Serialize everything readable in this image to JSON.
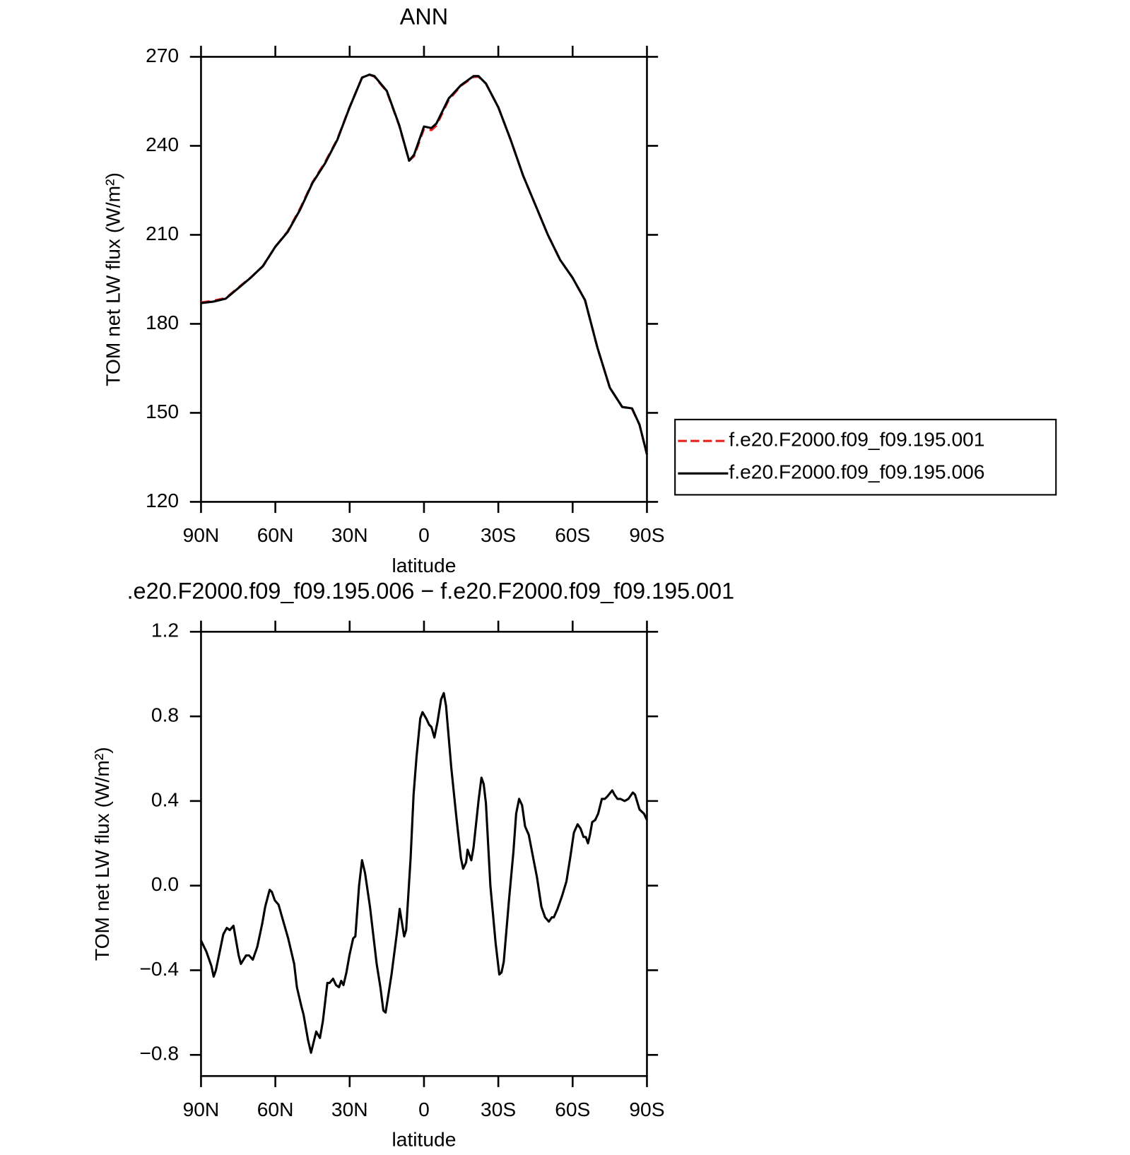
{
  "chart_data": [
    {
      "type": "line",
      "title": "ANN",
      "xlabel": "latitude",
      "ylabel": "TOM net LW flux (W/m²)",
      "xlim": [
        90,
        -90
      ],
      "xticks": [
        {
          "value": 90,
          "label": "90N"
        },
        {
          "value": 60,
          "label": "60N"
        },
        {
          "value": 30,
          "label": "30N"
        },
        0,
        {
          "value": -30,
          "label": "30S"
        },
        {
          "value": -60,
          "label": "60S"
        },
        {
          "value": -90,
          "label": "90S"
        }
      ],
      "ylim": [
        120,
        270
      ],
      "yticks": [
        120,
        150,
        180,
        210,
        240,
        270
      ],
      "legend": "right",
      "x": [
        90,
        85,
        80,
        75,
        70,
        65,
        60,
        55,
        50,
        45,
        40,
        35,
        30,
        25,
        22,
        20,
        15,
        10,
        6,
        4,
        0,
        -3,
        -5,
        -10,
        -15,
        -20,
        -22,
        -25,
        -30,
        -35,
        -40,
        -45,
        -50,
        -55,
        -60,
        -65,
        -70,
        -75,
        -80,
        -84,
        -87,
        -90
      ],
      "series": [
        {
          "name": "f.e20.F2000.f09_f09.195.001",
          "color": "#e8211f",
          "dash": true,
          "values": [
            187.2,
            187.8,
            188.7,
            192.2,
            195.6,
            199.4,
            206,
            211.2,
            218.9,
            227.7,
            234.4,
            242.2,
            253.1,
            263,
            264,
            263.3,
            258.3,
            246.8,
            235,
            236.5,
            245.7,
            245.3,
            246.8,
            255.5,
            260.3,
            263.2,
            263.3,
            261,
            253,
            242,
            230,
            220,
            210,
            201.5,
            195.5,
            188,
            172,
            158.5,
            152,
            151.3,
            146,
            136
          ]
        },
        {
          "name": "f.e20.F2000.f09_f09.195.006",
          "color": "#000000",
          "dash": false,
          "values": [
            187,
            187.5,
            188.5,
            192,
            195.5,
            199.5,
            206,
            211,
            218.5,
            227.5,
            234,
            242,
            253,
            263,
            264,
            263.5,
            258.5,
            247,
            235,
            237,
            246.5,
            246,
            247.5,
            256,
            260.5,
            263.5,
            263.5,
            261,
            253,
            242,
            230,
            220,
            210,
            201.5,
            195.5,
            188,
            172,
            158.5,
            152,
            151.5,
            146,
            136
          ]
        }
      ]
    },
    {
      "type": "line",
      "title": ".e20.F2000.f09_f09.195.006 − f.e20.F2000.f09_f09.195.001",
      "xlabel": "latitude",
      "ylabel": "TOM net LW flux (W/m²)",
      "xlim": [
        90,
        -90
      ],
      "xticks": [
        {
          "value": 90,
          "label": "90N"
        },
        {
          "value": 60,
          "label": "60N"
        },
        {
          "value": 30,
          "label": "30N"
        },
        0,
        {
          "value": -30,
          "label": "30S"
        },
        {
          "value": -60,
          "label": "60S"
        },
        {
          "value": -90,
          "label": "90S"
        }
      ],
      "ylim": [
        -0.9,
        1.2
      ],
      "yticks": [
        {
          "value": -0.8,
          "label": "−0.8"
        },
        {
          "value": -0.4,
          "label": "−0.4"
        },
        {
          "value": 0,
          "label": "0.0"
        },
        0.4,
        0.8,
        1.2
      ],
      "color": "#000000",
      "x": [
        90,
        87.9,
        85.8,
        84.9,
        84.0,
        81.0,
        79.6,
        78.4,
        76.9,
        74.8,
        73.9,
        71.8,
        70.6,
        69.1,
        67.3,
        65.3,
        64.1,
        62.3,
        61.4,
        60.2,
        58.7,
        57.5,
        54.8,
        52.4,
        51.3,
        49.5,
        48.6,
        46.8,
        45.6,
        43.5,
        42.0,
        40.8,
        39.0,
        38.1,
        36.7,
        35.5,
        34.3,
        33.4,
        32.5,
        31.3,
        30.1,
        28.6,
        27.7,
        26.2,
        25.0,
        23.8,
        21.8,
        19.1,
        17.6,
        16.4,
        15.5,
        13.1,
        11.0,
        9.8,
        8.0,
        7.2,
        5.4,
        4.2,
        3.0,
        1.5,
        0.6,
        -0.9,
        -2.1,
        -3.0,
        -4.2,
        -5.4,
        -6.9,
        -8.0,
        -8.9,
        -11.0,
        -13.1,
        -14.9,
        -15.8,
        -17.0,
        -17.6,
        -19.1,
        -20.0,
        -22.1,
        -23.2,
        -24.1,
        -25.0,
        -26.8,
        -28.9,
        -30.4,
        -31.3,
        -32.2,
        -34.3,
        -36.1,
        -37.2,
        -38.4,
        -39.6,
        -40.8,
        -42.3,
        -44.1,
        -45.6,
        -47.4,
        -48.9,
        -50.4,
        -51.6,
        -52.4,
        -53.9,
        -55.7,
        -57.5,
        -59.0,
        -60.5,
        -62.0,
        -63.2,
        -64.4,
        -65.3,
        -66.2,
        -67.0,
        -67.9,
        -69.1,
        -70.3,
        -71.8,
        -73.0,
        -73.9,
        -76.0,
        -76.9,
        -78.1,
        -79.3,
        -81.0,
        -82.5,
        -84.3,
        -85.2,
        -87.0,
        -88.8,
        -90
      ],
      "values": [
        -0.26,
        -0.31,
        -0.38,
        -0.43,
        -0.4,
        -0.23,
        -0.2,
        -0.21,
        -0.19,
        -0.33,
        -0.37,
        -0.33,
        -0.33,
        -0.35,
        -0.29,
        -0.18,
        -0.1,
        -0.02,
        -0.03,
        -0.07,
        -0.09,
        -0.14,
        -0.25,
        -0.37,
        -0.48,
        -0.57,
        -0.61,
        -0.73,
        -0.79,
        -0.69,
        -0.72,
        -0.64,
        -0.46,
        -0.46,
        -0.44,
        -0.47,
        -0.48,
        -0.45,
        -0.47,
        -0.41,
        -0.33,
        -0.25,
        -0.24,
        0.0,
        0.12,
        0.06,
        -0.1,
        -0.37,
        -0.48,
        -0.59,
        -0.6,
        -0.42,
        -0.23,
        -0.11,
        -0.24,
        -0.21,
        0.13,
        0.43,
        0.61,
        0.79,
        0.82,
        0.79,
        0.76,
        0.75,
        0.7,
        0.77,
        0.88,
        0.91,
        0.85,
        0.56,
        0.32,
        0.13,
        0.08,
        0.11,
        0.17,
        0.12,
        0.18,
        0.41,
        0.51,
        0.48,
        0.39,
        0.0,
        -0.27,
        -0.42,
        -0.41,
        -0.36,
        -0.07,
        0.16,
        0.34,
        0.41,
        0.38,
        0.28,
        0.24,
        0.13,
        0.04,
        -0.1,
        -0.15,
        -0.17,
        -0.15,
        -0.15,
        -0.11,
        -0.05,
        0.02,
        0.13,
        0.25,
        0.29,
        0.27,
        0.23,
        0.23,
        0.2,
        0.24,
        0.3,
        0.31,
        0.34,
        0.41,
        0.41,
        0.42,
        0.45,
        0.43,
        0.41,
        0.41,
        0.4,
        0.41,
        0.44,
        0.43,
        0.36,
        0.34,
        0.31
      ]
    }
  ]
}
